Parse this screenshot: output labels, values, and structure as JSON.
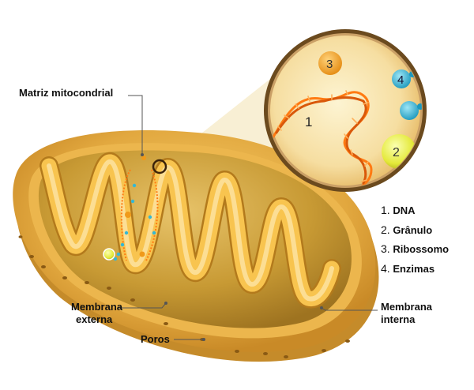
{
  "labels": {
    "matriz": "Matriz mitocondrial",
    "membrana_externa_l1": "Membrana",
    "membrana_externa_l2": "externa",
    "poros": "Poros",
    "membrana_interna_l1": "Membrana",
    "membrana_interna_l2": "interna"
  },
  "zoom_markers": [
    {
      "num": "1",
      "meaning": "DNA"
    },
    {
      "num": "2",
      "meaning": "Grânulo"
    },
    {
      "num": "3",
      "meaning": "Ribossomo"
    },
    {
      "num": "4",
      "meaning": "Enzimas"
    }
  ],
  "legend": [
    {
      "num": "1.",
      "text": "DNA"
    },
    {
      "num": "2.",
      "text": "Grânulo"
    },
    {
      "num": "3.",
      "text": "Ribossomo"
    },
    {
      "num": "4.",
      "text": "Enzimas"
    }
  ],
  "colors": {
    "outer_membrane": "#d9a23a",
    "matrix": "#c99b2e",
    "inner_membrane": "#f7c24e",
    "dna": "#ff7a12",
    "granule": "#e8ec3a",
    "ribosome": "#f09a1a",
    "enzyme": "#35b7d4",
    "zoom_ring": "#5a3a1a"
  }
}
